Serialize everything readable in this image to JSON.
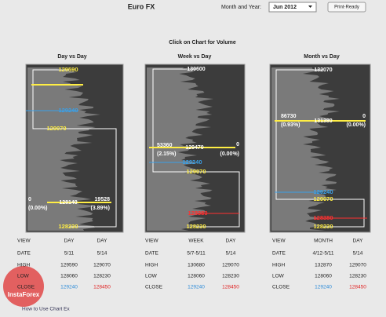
{
  "header": {
    "title": "Euro FX",
    "month_label": "Month and Year:",
    "month_value": "Jun 2012",
    "button": "Print-Ready"
  },
  "instruction": "Click on Chart for Volume",
  "panels": [
    {
      "title": "Day vs Day",
      "labels": [
        "129590",
        "129240",
        "129070",
        "0",
        "(0.00%)",
        "128140",
        "19528",
        "(3.89%)",
        "128230"
      ],
      "table": [
        [
          "VIEW",
          "DAY",
          "DAY"
        ],
        [
          "DATE",
          "5/11",
          "5/14"
        ],
        [
          "HIGH",
          "129590",
          "129070"
        ],
        [
          "LOW",
          "128060",
          "128230"
        ],
        [
          "CLOSE",
          "129240",
          "128450"
        ]
      ]
    },
    {
      "title": "Week vs Day",
      "labels": [
        "130600",
        "53360",
        "(2.15%)",
        "129470",
        "0",
        "(0.00%)",
        "129240",
        "129070",
        "128380",
        "128230"
      ],
      "table": [
        [
          "VIEW",
          "WEEK",
          "DAY"
        ],
        [
          "DATE",
          "5/7-5/11",
          "5/14"
        ],
        [
          "HIGH",
          "130680",
          "129070"
        ],
        [
          "LOW",
          "128060",
          "128230"
        ],
        [
          "CLOSE",
          "129240",
          "128450"
        ]
      ]
    },
    {
      "title": "Month vs Day",
      "labels": [
        "132070",
        "86730",
        "(0.93%)",
        "131380",
        "0",
        "(0.00%)",
        "129240",
        "129070",
        "128380",
        "128230"
      ],
      "table": [
        [
          "VIEW",
          "MONTH",
          "DAY"
        ],
        [
          "DATE",
          "4/12-5/11",
          "5/14"
        ],
        [
          "HIGH",
          "132870",
          "129070"
        ],
        [
          "LOW",
          "128060",
          "128230"
        ],
        [
          "CLOSE",
          "129240",
          "128450"
        ]
      ]
    }
  ],
  "footer": "How to Use Chart Ex",
  "watermark": "InstaForex"
}
